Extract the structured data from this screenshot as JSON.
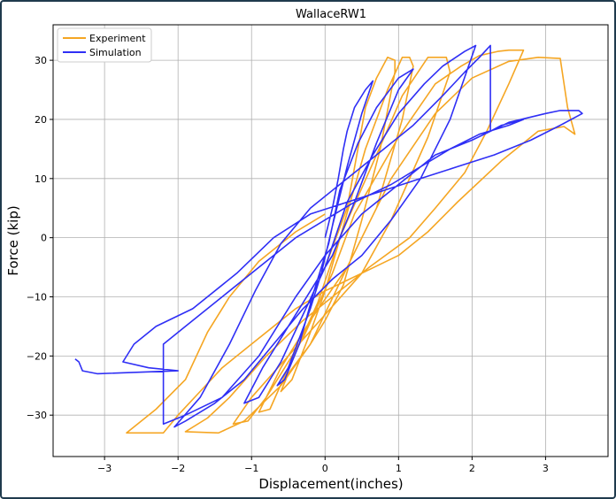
{
  "chart_data": {
    "type": "line",
    "title": "WallaceRW1",
    "xlabel": "Displacement(inches)",
    "ylabel": "Force (kip)",
    "xlim": [
      -3.7,
      3.85
    ],
    "ylim": [
      -37,
      36
    ],
    "xticks": [
      -3,
      -2,
      -1,
      0,
      1,
      2,
      3
    ],
    "yticks": [
      -30,
      -20,
      -10,
      0,
      10,
      20,
      30
    ],
    "grid": true,
    "legend_position": "top-left",
    "series": [
      {
        "name": "Experiment",
        "color": "#f5a623",
        "points": [
          [
            0,
            -5
          ],
          [
            0.3,
            5
          ],
          [
            0.55,
            22
          ],
          [
            0.7,
            27
          ],
          [
            0.85,
            30.5
          ],
          [
            0.95,
            30
          ],
          [
            0.95,
            28
          ],
          [
            0.75,
            15
          ],
          [
            0.5,
            3
          ],
          [
            0.25,
            -8
          ],
          [
            0,
            -14
          ],
          [
            -0.2,
            -18
          ],
          [
            -0.5,
            -23
          ],
          [
            -0.6,
            -26
          ],
          [
            -0.45,
            -24
          ],
          [
            -0.2,
            -16
          ],
          [
            0,
            -9
          ],
          [
            0.25,
            2
          ],
          [
            0.55,
            15
          ],
          [
            0.85,
            25
          ],
          [
            1.05,
            30.5
          ],
          [
            1.15,
            30.5
          ],
          [
            1.2,
            29
          ],
          [
            1.05,
            20
          ],
          [
            0.7,
            5
          ],
          [
            0.3,
            -5
          ],
          [
            -0.2,
            -14
          ],
          [
            -0.6,
            -22
          ],
          [
            -0.9,
            -29.5
          ],
          [
            -0.75,
            -29
          ],
          [
            -0.5,
            -22
          ],
          [
            -0.1,
            -11
          ],
          [
            0.2,
            0
          ],
          [
            0.7,
            14
          ],
          [
            1.05,
            24
          ],
          [
            1.4,
            30.5
          ],
          [
            1.65,
            30.5
          ],
          [
            1.7,
            28
          ],
          [
            1.4,
            17
          ],
          [
            0.9,
            3
          ],
          [
            0.5,
            -6
          ],
          [
            0,
            -13
          ],
          [
            -0.5,
            -20
          ],
          [
            -1.0,
            -27
          ],
          [
            -1.25,
            -31.5
          ],
          [
            -1.05,
            -31
          ],
          [
            -0.8,
            -27
          ],
          [
            -0.3,
            -17
          ],
          [
            0.1,
            -6
          ],
          [
            0.4,
            4
          ],
          [
            1.0,
            17
          ],
          [
            1.5,
            26
          ],
          [
            1.85,
            29
          ],
          [
            2.1,
            30.8
          ],
          [
            2.35,
            31.5
          ],
          [
            2.5,
            31.7
          ],
          [
            2.7,
            31.7
          ],
          [
            2.5,
            26
          ],
          [
            2.2,
            18
          ],
          [
            1.9,
            11
          ],
          [
            1.5,
            5
          ],
          [
            1.15,
            0
          ],
          [
            0.6,
            -5
          ],
          [
            0.1,
            -10
          ],
          [
            -0.3,
            -14
          ],
          [
            -0.8,
            -20
          ],
          [
            -1.3,
            -27
          ],
          [
            -1.6,
            -30.5
          ],
          [
            -1.9,
            -32.8
          ],
          [
            -1.45,
            -33
          ],
          [
            -1.1,
            -31
          ],
          [
            -0.6,
            -25
          ],
          [
            -0.2,
            -18
          ],
          [
            0.3,
            -5
          ],
          [
            0.9,
            10
          ],
          [
            1.5,
            21
          ],
          [
            2.0,
            27
          ],
          [
            2.5,
            29.8
          ],
          [
            2.9,
            30.5
          ],
          [
            3.2,
            30.3
          ],
          [
            3.3,
            22
          ],
          [
            3.4,
            17.5
          ],
          [
            3.25,
            18.8
          ],
          [
            2.9,
            18
          ],
          [
            2.4,
            13
          ],
          [
            1.8,
            6
          ],
          [
            1.4,
            1
          ],
          [
            1.0,
            -3
          ],
          [
            0.5,
            -6
          ],
          [
            0,
            -9
          ],
          [
            -0.4,
            -12
          ],
          [
            -0.9,
            -17
          ],
          [
            -1.4,
            -22
          ],
          [
            -1.7,
            -26
          ],
          [
            -2.0,
            -30
          ],
          [
            -2.2,
            -33
          ],
          [
            -2.7,
            -33
          ],
          [
            -2.3,
            -29
          ],
          [
            -1.9,
            -24
          ],
          [
            -1.6,
            -16
          ],
          [
            -1.3,
            -10
          ],
          [
            -0.9,
            -4
          ],
          [
            -0.4,
            1
          ],
          [
            0,
            4
          ]
        ]
      },
      {
        "name": "Simulation",
        "color": "#2f2ff5",
        "points": [
          [
            0,
            0
          ],
          [
            0.1,
            5
          ],
          [
            0.18,
            10
          ],
          [
            0.25,
            15
          ],
          [
            0.3,
            18
          ],
          [
            0.4,
            22
          ],
          [
            0.55,
            25
          ],
          [
            0.65,
            26.5
          ],
          [
            0.5,
            21
          ],
          [
            0.3,
            12
          ],
          [
            0.1,
            2
          ],
          [
            -0.05,
            -6
          ],
          [
            -0.2,
            -12
          ],
          [
            -0.35,
            -17
          ],
          [
            -0.5,
            -22
          ],
          [
            -0.65,
            -25
          ],
          [
            -0.55,
            -24
          ],
          [
            -0.35,
            -18
          ],
          [
            -0.15,
            -9
          ],
          [
            0.05,
            -1
          ],
          [
            0.2,
            8
          ],
          [
            0.45,
            16
          ],
          [
            0.7,
            22
          ],
          [
            1.0,
            27
          ],
          [
            1.2,
            28.5
          ],
          [
            1.0,
            25
          ],
          [
            0.7,
            16
          ],
          [
            0.4,
            6
          ],
          [
            0.1,
            -3
          ],
          [
            -0.2,
            -9
          ],
          [
            -0.5,
            -15
          ],
          [
            -0.85,
            -22
          ],
          [
            -1.1,
            -28
          ],
          [
            -0.9,
            -27
          ],
          [
            -0.6,
            -21
          ],
          [
            -0.3,
            -13
          ],
          [
            0,
            -5
          ],
          [
            0.3,
            6
          ],
          [
            0.65,
            14
          ],
          [
            1.0,
            21
          ],
          [
            1.35,
            26
          ],
          [
            1.6,
            29
          ],
          [
            1.9,
            31.5
          ],
          [
            2.05,
            32.5
          ],
          [
            1.7,
            20
          ],
          [
            1.3,
            10
          ],
          [
            0.9,
            3
          ],
          [
            0.5,
            -3
          ],
          [
            0.1,
            -7
          ],
          [
            -0.3,
            -12
          ],
          [
            -0.7,
            -18
          ],
          [
            -1.1,
            -24
          ],
          [
            -1.5,
            -28
          ],
          [
            -1.9,
            -31
          ],
          [
            -2.05,
            -32
          ],
          [
            -1.7,
            -27
          ],
          [
            -1.3,
            -18
          ],
          [
            -0.95,
            -9
          ],
          [
            -0.6,
            -1
          ],
          [
            -0.2,
            5
          ],
          [
            0.2,
            9
          ],
          [
            0.7,
            14
          ],
          [
            1.2,
            19
          ],
          [
            1.6,
            24
          ],
          [
            1.9,
            28
          ],
          [
            2.1,
            30.5
          ],
          [
            2.25,
            32.5
          ],
          [
            2.25,
            18
          ],
          [
            2.4,
            19
          ],
          [
            2.7,
            20
          ],
          [
            2.5,
            19
          ],
          [
            2.1,
            17.5
          ],
          [
            1.7,
            15
          ],
          [
            1.3,
            12
          ],
          [
            0.9,
            9
          ],
          [
            0.4,
            6
          ],
          [
            0,
            3
          ],
          [
            -0.4,
            0
          ],
          [
            -0.9,
            -5
          ],
          [
            -1.4,
            -10
          ],
          [
            -1.9,
            -15
          ],
          [
            -2.2,
            -18
          ],
          [
            -2.2,
            -31.5
          ],
          [
            -1.9,
            -30
          ],
          [
            -1.4,
            -27
          ],
          [
            -0.9,
            -20
          ],
          [
            -0.4,
            -10
          ],
          [
            0,
            -3
          ],
          [
            0.5,
            4
          ],
          [
            1.0,
            9
          ],
          [
            1.5,
            14
          ],
          [
            2.0,
            16.5
          ],
          [
            2.5,
            19.5
          ],
          [
            3.0,
            21
          ],
          [
            3.2,
            21.5
          ],
          [
            3.45,
            21.5
          ],
          [
            3.5,
            21
          ],
          [
            3.2,
            19
          ],
          [
            2.8,
            16.5
          ],
          [
            2.3,
            14
          ],
          [
            1.8,
            12
          ],
          [
            1.3,
            10
          ],
          [
            0.8,
            8
          ],
          [
            0.3,
            6
          ],
          [
            -0.2,
            4
          ],
          [
            -0.7,
            0
          ],
          [
            -1.2,
            -6
          ],
          [
            -1.8,
            -12
          ],
          [
            -2.3,
            -15
          ],
          [
            -2.6,
            -18
          ],
          [
            -2.75,
            -21
          ],
          [
            -2.4,
            -22
          ],
          [
            -2.0,
            -22.5
          ],
          [
            -3.1,
            -23
          ],
          [
            -3.3,
            -22.5
          ],
          [
            -3.35,
            -21
          ],
          [
            -3.4,
            -20.5
          ]
        ]
      }
    ]
  }
}
